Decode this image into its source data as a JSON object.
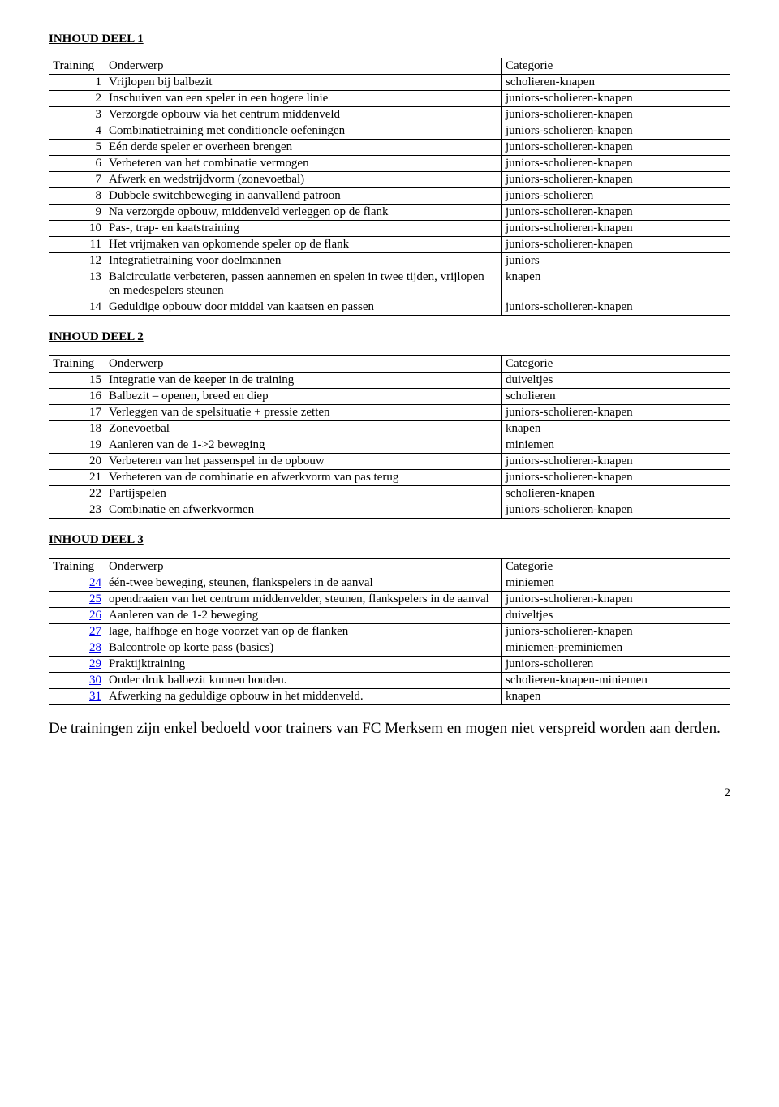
{
  "pageNumber": "2",
  "note": "De trainingen zijn enkel bedoeld voor trainers van FC Merksem en mogen niet verspreid worden aan derden.",
  "sections": [
    {
      "title": "INHOUD DEEL 1",
      "headers": {
        "col1": "Training",
        "col2": "Onderwerp",
        "col3": "Categorie"
      },
      "linked": false,
      "rows": [
        {
          "n": "1",
          "s": "Vrijlopen bij balbezit",
          "c": "scholieren-knapen"
        },
        {
          "n": "2",
          "s": "Inschuiven van een speler in een hogere linie",
          "c": "juniors-scholieren-knapen"
        },
        {
          "n": "3",
          "s": "Verzorgde opbouw via het centrum middenveld",
          "c": "juniors-scholieren-knapen"
        },
        {
          "n": "4",
          "s": "Combinatietraining met conditionele oefeningen",
          "c": "juniors-scholieren-knapen"
        },
        {
          "n": "5",
          "s": "Eén derde speler er overheen brengen",
          "c": "juniors-scholieren-knapen"
        },
        {
          "n": "6",
          "s": "Verbeteren van het combinatie vermogen",
          "c": "juniors-scholieren-knapen"
        },
        {
          "n": "7",
          "s": "Afwerk en wedstrijdvorm (zonevoetbal)",
          "c": "juniors-scholieren-knapen"
        },
        {
          "n": "8",
          "s": "Dubbele switchbeweging in aanvallend patroon",
          "c": "juniors-scholieren"
        },
        {
          "n": "9",
          "s": "Na verzorgde opbouw, middenveld verleggen op de flank",
          "c": "juniors-scholieren-knapen"
        },
        {
          "n": "10",
          "s": "Pas-, trap- en kaatstraining",
          "c": "juniors-scholieren-knapen"
        },
        {
          "n": "11",
          "s": "Het vrijmaken van opkomende speler op de flank",
          "c": "juniors-scholieren-knapen"
        },
        {
          "n": "12",
          "s": "Integratietraining voor doelmannen",
          "c": "juniors"
        },
        {
          "n": "13",
          "s": "Balcirculatie verbeteren, passen aannemen en spelen in twee tijden, vrijlopen en medespelers steunen",
          "c": "knapen"
        },
        {
          "n": "14",
          "s": "Geduldige opbouw door middel van kaatsen en passen",
          "c": "juniors-scholieren-knapen"
        }
      ]
    },
    {
      "title": "INHOUD DEEL 2",
      "headers": {
        "col1": "Training",
        "col2": "Onderwerp",
        "col3": "Categorie"
      },
      "linked": false,
      "rows": [
        {
          "n": "15",
          "s": "Integratie van de keeper in de training",
          "c": "duiveltjes"
        },
        {
          "n": "16",
          "s": "Balbezit – openen, breed en diep",
          "c": "scholieren"
        },
        {
          "n": "17",
          "s": "Verleggen van de spelsituatie + pressie zetten",
          "c": "juniors-scholieren-knapen"
        },
        {
          "n": "18",
          "s": "Zonevoetbal",
          "c": "knapen"
        },
        {
          "n": "19",
          "s": "Aanleren van de 1->2 beweging",
          "c": "miniemen"
        },
        {
          "n": "20",
          "s": "Verbeteren van het passenspel in de opbouw",
          "c": "juniors-scholieren-knapen"
        },
        {
          "n": "21",
          "s": "Verbeteren van de combinatie en afwerkvorm van pas terug",
          "c": "juniors-scholieren-knapen"
        },
        {
          "n": "22",
          "s": "Partijspelen",
          "c": "scholieren-knapen"
        },
        {
          "n": "23",
          "s": "Combinatie en afwerkvormen",
          "c": "juniors-scholieren-knapen"
        }
      ]
    },
    {
      "title": "INHOUD DEEL 3",
      "headers": {
        "col1": "Training",
        "col2": "Onderwerp",
        "col3": "Categorie"
      },
      "linked": true,
      "rows": [
        {
          "n": "24",
          "s": "één-twee beweging, steunen, flankspelers in de aanval",
          "c": "miniemen"
        },
        {
          "n": "25",
          "s": "opendraaien van het centrum middenvelder, steunen, flankspelers in de aanval",
          "c": "juniors-scholieren-knapen"
        },
        {
          "n": "26",
          "s": "Aanleren van de 1-2 beweging",
          "c": "duiveltjes"
        },
        {
          "n": "27",
          "s": "lage, halfhoge en hoge voorzet van op de flanken",
          "c": "juniors-scholieren-knapen"
        },
        {
          "n": "28",
          "s": "Balcontrole op korte pass (basics)",
          "c": "miniemen-preminiemen"
        },
        {
          "n": "29",
          "s": "Praktijktraining",
          "c": "juniors-scholieren"
        },
        {
          "n": "30",
          "s": "Onder druk balbezit kunnen houden.",
          "c": "scholieren-knapen-miniemen"
        },
        {
          "n": "31",
          "s": "Afwerking na geduldige opbouw in het middenveld.",
          "c": "knapen"
        }
      ]
    }
  ]
}
